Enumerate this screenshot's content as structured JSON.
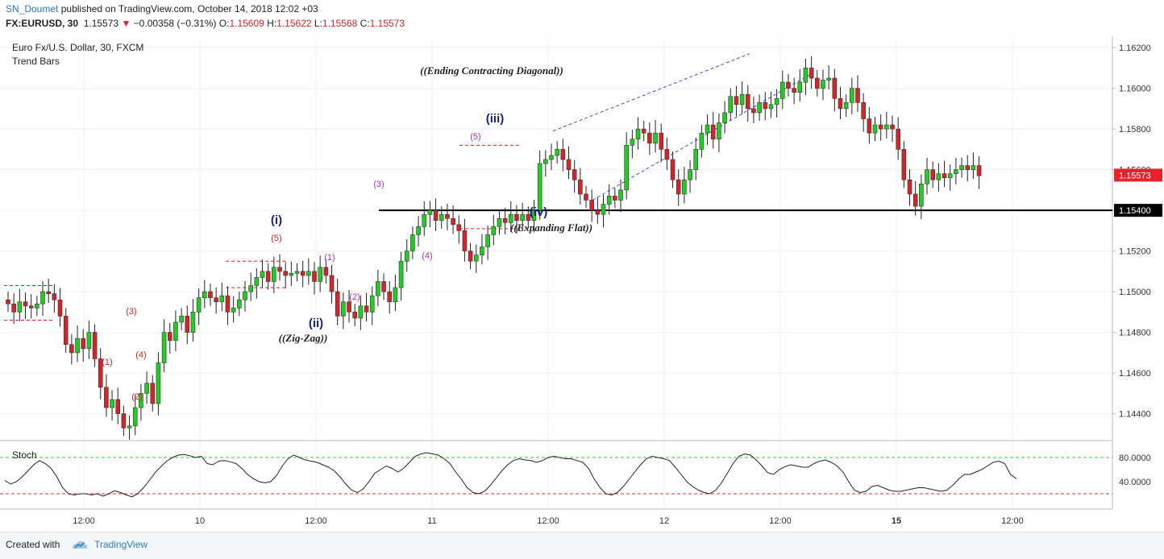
{
  "header": {
    "author": "SN_Doumet",
    "published_text": "published on TradingView.com, October 14, 2018 12:02 +03",
    "symbol": "FX:EURUSD, 30",
    "last": "1.15573",
    "change": "−0.00358 (−0.31%)",
    "o_label": "O:",
    "o_value": "1.15609",
    "h_label": "H:",
    "h_value": "1.15622",
    "l_label": "L:",
    "l_value": "1.15568",
    "c_label": "C:",
    "c_value": "1.15573"
  },
  "legend": {
    "title": "Euro Fx/U.S. Dollar, 30, FXCM",
    "subtitle": "Trend Bars",
    "stoch_label": "Stoch"
  },
  "colors": {
    "up": "#22cc22",
    "down": "#d0262b",
    "wave_blue": "#1a237e",
    "wave_red": "#d0262b",
    "wave_purple": "#aa33aa",
    "channel": "#3355dd"
  },
  "chart_data": {
    "type": "candlestick",
    "ylim": [
      1.143,
      1.1625
    ],
    "y_ticks": [
      1.144,
      1.146,
      1.148,
      1.15,
      1.152,
      1.154,
      1.156,
      1.158,
      1.16,
      1.162
    ],
    "y_tick_labels": [
      "1.14400",
      "1.14600",
      "1.14800",
      "1.15000",
      "1.15200",
      "1.15400",
      "1.15600",
      "1.15800",
      "1.16000",
      "1.16200"
    ],
    "x_tick_labels": [
      "12:00",
      "10",
      "12:00",
      "11",
      "12:00",
      "12",
      "12:00",
      "15",
      "12:00"
    ],
    "last_price": "1.15573",
    "horizontal_level": "1.15400",
    "closes": [
      1.1494,
      1.149,
      1.1495,
      1.1493,
      1.1492,
      1.1494,
      1.15,
      1.1499,
      1.1496,
      1.1488,
      1.1474,
      1.147,
      1.1477,
      1.1472,
      1.148,
      1.1467,
      1.1453,
      1.1443,
      1.1447,
      1.144,
      1.1433,
      1.1434,
      1.1443,
      1.145,
      1.1455,
      1.1445,
      1.1465,
      1.148,
      1.1476,
      1.1485,
      1.1488,
      1.148,
      1.149,
      1.1497,
      1.15,
      1.1497,
      1.1495,
      1.1498,
      1.149,
      1.1492,
      1.1496,
      1.15,
      1.1503,
      1.1507,
      1.151,
      1.1505,
      1.1512,
      1.151,
      1.1508,
      1.1509,
      1.151,
      1.1508,
      1.151,
      1.1505,
      1.1512,
      1.1508,
      1.15,
      1.1488,
      1.1495,
      1.149,
      1.1487,
      1.1493,
      1.149,
      1.1498,
      1.1505,
      1.15,
      1.1495,
      1.1502,
      1.1515,
      1.152,
      1.1528,
      1.1532,
      1.1538,
      1.154,
      1.1535,
      1.1538,
      1.1536,
      1.1533,
      1.153,
      1.152,
      1.1515,
      1.1518,
      1.1522,
      1.1528,
      1.1532,
      1.1536,
      1.1534,
      1.1538,
      1.1535,
      1.1538,
      1.1535,
      1.154,
      1.1563,
      1.1565,
      1.1567,
      1.157,
      1.1565,
      1.156,
      1.1555,
      1.1548,
      1.1545,
      1.154,
      1.1538,
      1.1543,
      1.1547,
      1.1545,
      1.155,
      1.1572,
      1.1575,
      1.158,
      1.1578,
      1.1573,
      1.1578,
      1.157,
      1.1565,
      1.1555,
      1.1548,
      1.1555,
      1.156,
      1.157,
      1.1578,
      1.1582,
      1.1575,
      1.1583,
      1.1588,
      1.1596,
      1.1592,
      1.1597,
      1.159,
      1.1588,
      1.1593,
      1.159,
      1.1592,
      1.1595,
      1.1603,
      1.16,
      1.1598,
      1.1603,
      1.161,
      1.1605,
      1.16,
      1.1604,
      1.1605,
      1.1595,
      1.159,
      1.1593,
      1.16,
      1.1593,
      1.1585,
      1.1578,
      1.1582,
      1.158,
      1.1582,
      1.158,
      1.157,
      1.1555,
      1.1548,
      1.1542,
      1.1553,
      1.156,
      1.1555,
      1.1558,
      1.1556,
      1.1558,
      1.156,
      1.1562,
      1.156,
      1.1562,
      1.1557
    ],
    "stoch_ylim": [
      0,
      100
    ],
    "stoch_ticks": [
      "80.0000",
      "40.0000"
    ],
    "stoch_levels": [
      80,
      20
    ],
    "stoch_values": [
      42,
      36,
      40,
      48,
      58,
      68,
      75,
      70,
      62,
      48,
      30,
      20,
      18,
      20,
      20,
      18,
      20,
      16,
      20,
      25,
      22,
      18,
      15,
      20,
      30,
      42,
      55,
      65,
      74,
      80,
      84,
      85,
      83,
      80,
      82,
      70,
      68,
      74,
      75,
      73,
      70,
      62,
      52,
      45,
      40,
      38,
      40,
      50,
      66,
      78,
      84,
      80,
      76,
      74,
      72,
      68,
      64,
      58,
      48,
      36,
      26,
      22,
      28,
      40,
      54,
      60,
      66,
      62,
      56,
      62,
      72,
      82,
      86,
      88,
      86,
      84,
      78,
      70,
      56,
      44,
      30,
      22,
      20,
      24,
      34,
      46,
      58,
      68,
      75,
      78,
      76,
      75,
      72,
      75,
      80,
      82,
      80,
      78,
      78,
      75,
      72,
      62,
      44,
      30,
      20,
      18,
      22,
      32,
      44,
      56,
      68,
      78,
      82,
      80,
      78,
      75,
      64,
      52,
      40,
      32,
      26,
      22,
      20,
      26,
      38,
      54,
      70,
      82,
      86,
      84,
      76,
      66,
      55,
      52,
      60,
      65,
      68,
      66,
      64,
      64,
      70,
      74,
      76,
      72,
      66,
      56,
      40,
      26,
      22,
      24,
      32,
      34,
      30,
      26,
      24,
      24,
      26,
      28,
      30,
      30,
      28,
      26,
      24,
      26,
      34,
      44,
      52,
      52,
      56,
      60,
      66,
      72,
      74,
      70,
      52,
      45
    ]
  },
  "annotations": {
    "waves": [
      {
        "text": "(i)",
        "x": 343,
        "y": 278,
        "color": "wave_blue",
        "size": 15
      },
      {
        "text": "(ii)",
        "x": 392,
        "y": 406,
        "color": "wave_blue",
        "size": 15
      },
      {
        "text": "(iii)",
        "x": 614,
        "y": 152,
        "color": "wave_blue",
        "size": 15
      },
      {
        "text": "(iv)",
        "x": 668,
        "y": 268,
        "color": "wave_blue",
        "size": 15
      },
      {
        "text": "(5)",
        "x": 343,
        "y": 299,
        "color": "wave_red",
        "size": 11
      },
      {
        "text": "(1)",
        "x": 133,
        "y": 453,
        "color": "wave_red",
        "size": 11
      },
      {
        "text": "(2)",
        "x": 170,
        "y": 496,
        "color": "wave_red",
        "size": 11
      },
      {
        "text": "(3)",
        "x": 163,
        "y": 390,
        "color": "wave_red",
        "size": 11
      },
      {
        "text": "(4)",
        "x": 175,
        "y": 444,
        "color": "wave_red",
        "size": 11
      },
      {
        "text": "(1)",
        "x": 409,
        "y": 323,
        "color": "wave_purple",
        "size": 11
      },
      {
        "text": "(2)",
        "x": 440,
        "y": 372,
        "color": "wave_purple",
        "size": 11
      },
      {
        "text": "(3)",
        "x": 470,
        "y": 232,
        "color": "wave_purple",
        "size": 11
      },
      {
        "text": "(4)",
        "x": 530,
        "y": 321,
        "color": "wave_purple",
        "size": 11
      },
      {
        "text": "(5)",
        "x": 590,
        "y": 173,
        "color": "wave_purple",
        "size": 11
      }
    ],
    "patterns": [
      {
        "text": "((Zig-Zag))",
        "x": 376,
        "y": 424
      },
      {
        "text": "((Expanding Flat))",
        "x": 684,
        "y": 287
      },
      {
        "text": "((Ending Contracting Diagonal))",
        "x": 610,
        "y": 92
      }
    ]
  },
  "footer": {
    "created_with": "Created with",
    "brand": "TradingView"
  }
}
